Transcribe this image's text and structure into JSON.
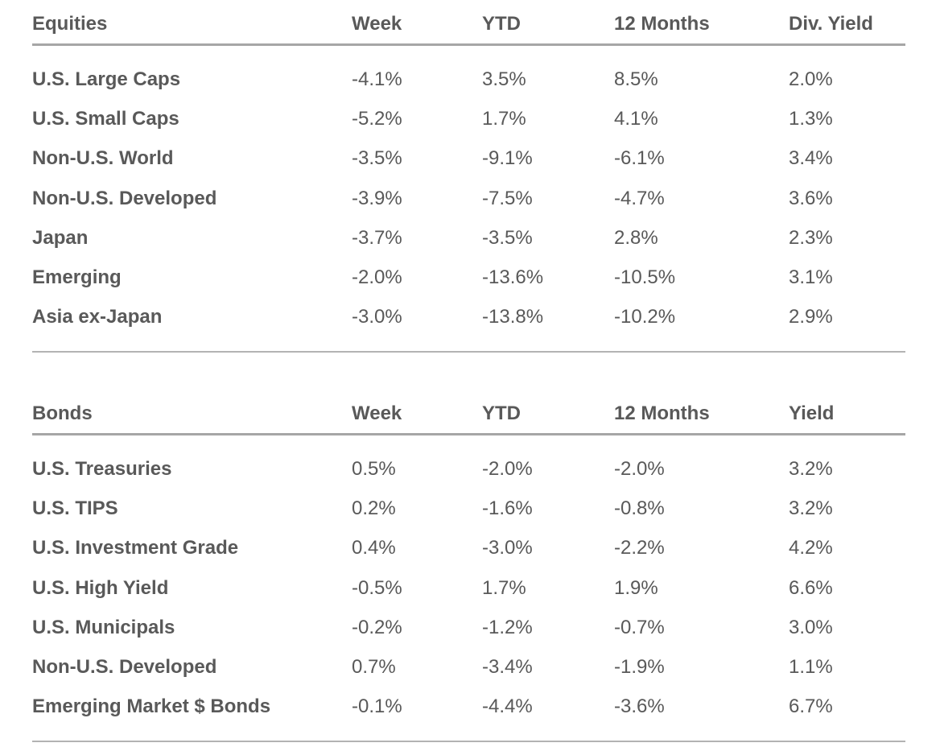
{
  "equities": {
    "headers": {
      "name": "Equities",
      "week": "Week",
      "ytd": "YTD",
      "twelve_months": "12 Months",
      "yield": "Div. Yield"
    },
    "rows": [
      {
        "name": "U.S. Large Caps",
        "week": "-4.1%",
        "ytd": "3.5%",
        "twelve_months": "8.5%",
        "yield": "2.0%"
      },
      {
        "name": "U.S. Small Caps",
        "week": "-5.2%",
        "ytd": "1.7%",
        "twelve_months": "4.1%",
        "yield": "1.3%"
      },
      {
        "name": "Non-U.S. World",
        "week": "-3.5%",
        "ytd": "-9.1%",
        "twelve_months": "-6.1%",
        "yield": "3.4%"
      },
      {
        "name": "Non-U.S. Developed",
        "week": "-3.9%",
        "ytd": "-7.5%",
        "twelve_months": "-4.7%",
        "yield": "3.6%"
      },
      {
        "name": "Japan",
        "week": "-3.7%",
        "ytd": "-3.5%",
        "twelve_months": "2.8%",
        "yield": "2.3%"
      },
      {
        "name": "Emerging",
        "week": "-2.0%",
        "ytd": "-13.6%",
        "twelve_months": "-10.5%",
        "yield": "3.1%"
      },
      {
        "name": "Asia ex-Japan",
        "week": "-3.0%",
        "ytd": "-13.8%",
        "twelve_months": "-10.2%",
        "yield": "2.9%"
      }
    ]
  },
  "bonds": {
    "headers": {
      "name": "Bonds",
      "week": "Week",
      "ytd": "YTD",
      "twelve_months": "12 Months",
      "yield": "Yield"
    },
    "rows": [
      {
        "name": "U.S. Treasuries",
        "week": "0.5%",
        "ytd": "-2.0%",
        "twelve_months": "-2.0%",
        "yield": "3.2%"
      },
      {
        "name": "U.S. TIPS",
        "week": "0.2%",
        "ytd": "-1.6%",
        "twelve_months": "-0.8%",
        "yield": "3.2%"
      },
      {
        "name": "U.S. Investment Grade",
        "week": "0.4%",
        "ytd": "-3.0%",
        "twelve_months": "-2.2%",
        "yield": "4.2%"
      },
      {
        "name": "U.S. High Yield",
        "week": "-0.5%",
        "ytd": "1.7%",
        "twelve_months": "1.9%",
        "yield": "6.6%"
      },
      {
        "name": "U.S. Municipals",
        "week": "-0.2%",
        "ytd": "-1.2%",
        "twelve_months": "-0.7%",
        "yield": "3.0%"
      },
      {
        "name": "Non-U.S. Developed",
        "week": "0.7%",
        "ytd": "-3.4%",
        "twelve_months": "-1.9%",
        "yield": "1.1%"
      },
      {
        "name": "Emerging Market $ Bonds",
        "week": "-0.1%",
        "ytd": "-4.4%",
        "twelve_months": "-3.6%",
        "yield": "6.7%"
      }
    ]
  }
}
